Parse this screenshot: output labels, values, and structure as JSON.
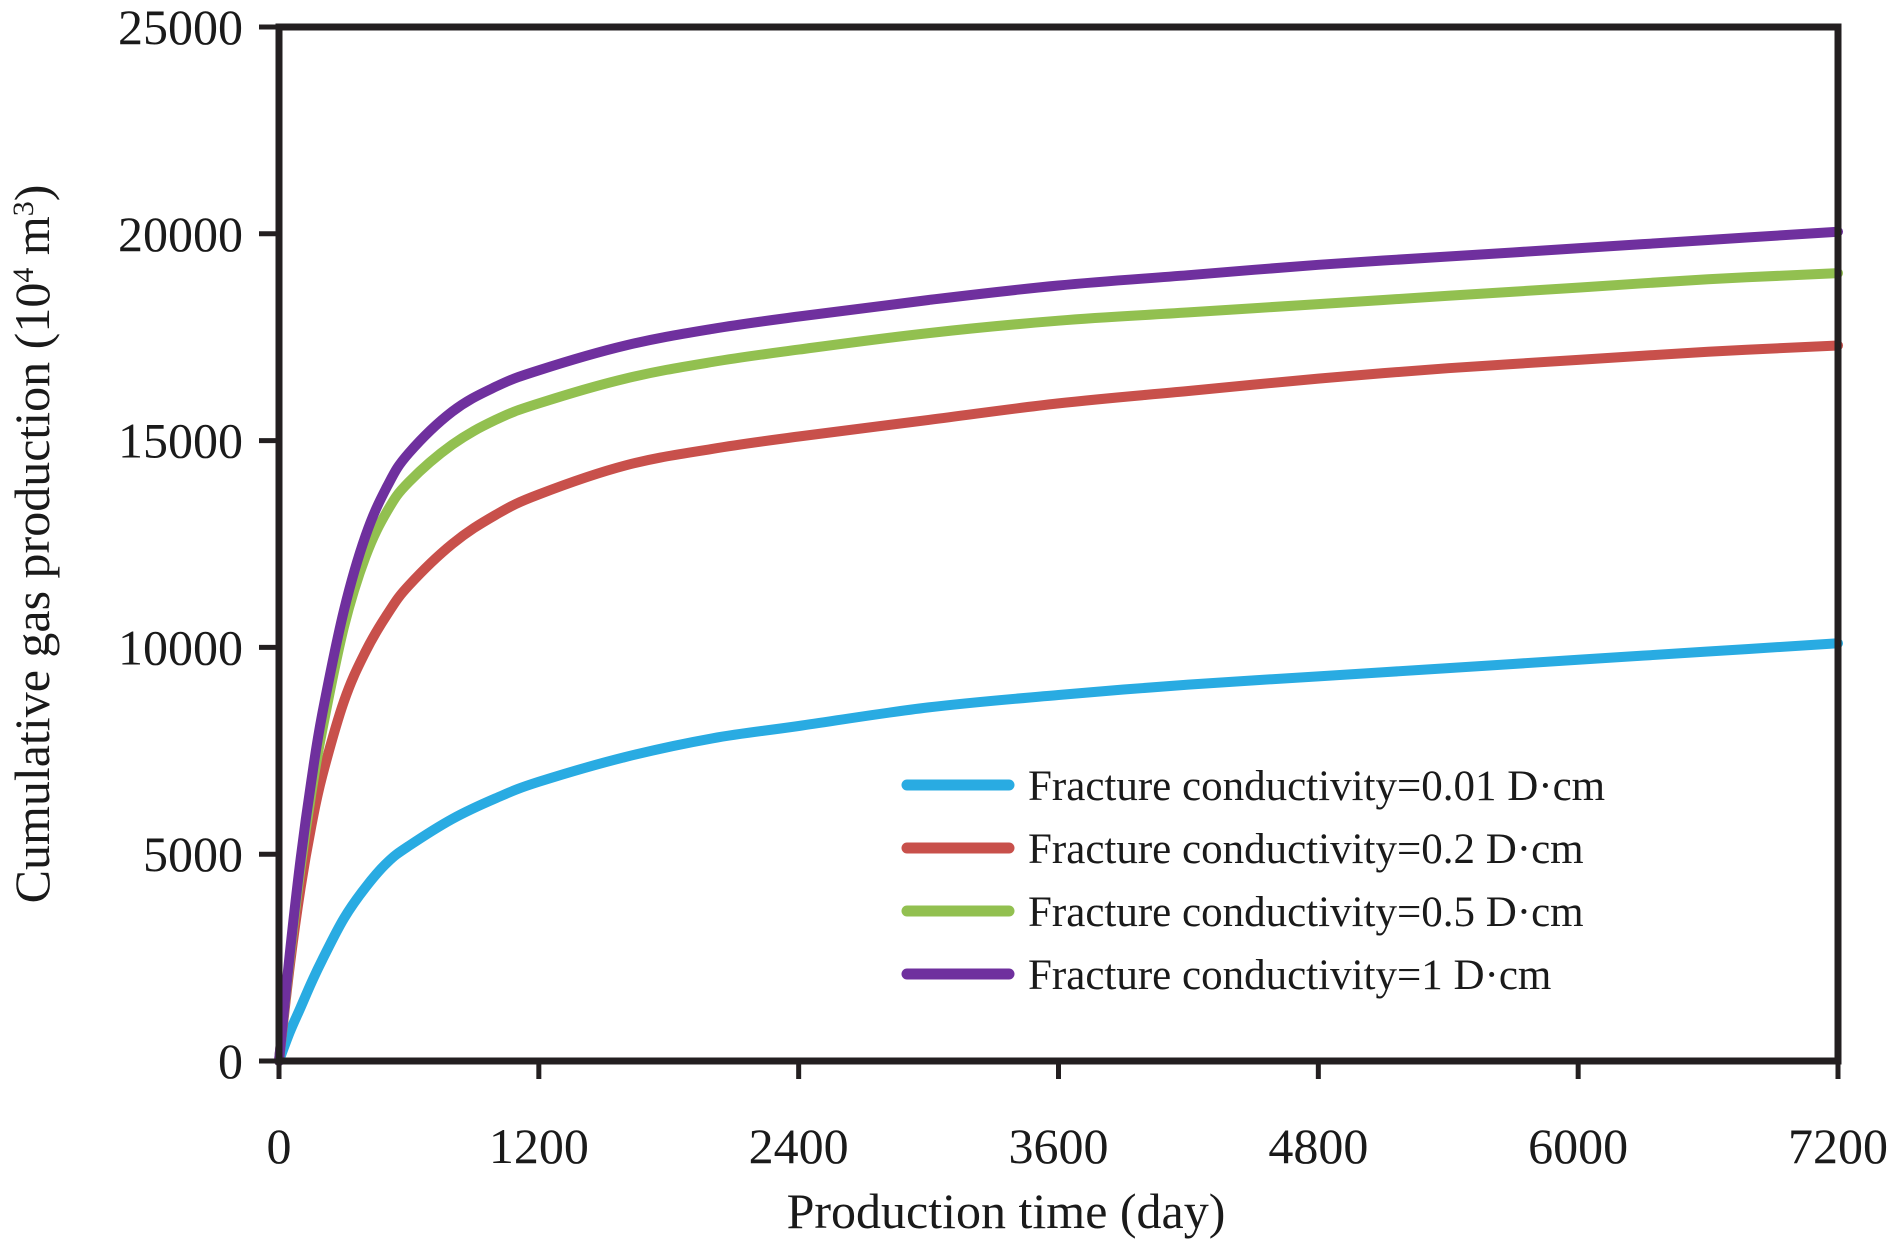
{
  "chart_data": {
    "type": "line",
    "title": "",
    "xlabel": "Production time (day)",
    "ylabel": "Cumulative gas production (10",
    "ylabel_superscript": "4",
    "ylabel_suffix": " m",
    "ylabel_unit_superscript": "3",
    "ylabel_close": ")",
    "xlim": [
      0,
      7200
    ],
    "ylim": [
      0,
      25000
    ],
    "xticks": [
      "0",
      "1200",
      "2400",
      "3600",
      "4800",
      "6000",
      "7200"
    ],
    "yticks": [
      "0",
      "5000",
      "10000",
      "15000",
      "20000",
      "25000"
    ],
    "grid": false,
    "legend_position": "bottom-right",
    "series": [
      {
        "name": "Fracture conductivity=0.01 D·cm",
        "color": "#29abe2",
        "x": [
          0,
          50,
          100,
          150,
          200,
          300,
          400,
          500,
          600,
          800,
          1000,
          1200,
          1600,
          2000,
          2400,
          3000,
          3600,
          4200,
          4800,
          5400,
          6000,
          6600,
          7200
        ],
        "y": [
          0,
          700,
          1300,
          1900,
          2450,
          3450,
          4200,
          4800,
          5200,
          5850,
          6350,
          6750,
          7350,
          7800,
          8100,
          8550,
          8850,
          9100,
          9300,
          9500,
          9700,
          9900,
          10100
        ]
      },
      {
        "name": "Fracture conductivity=0.2 D·cm",
        "color": "#c8504b",
        "x": [
          0,
          50,
          100,
          150,
          200,
          300,
          400,
          500,
          600,
          800,
          1000,
          1200,
          1600,
          2000,
          2400,
          3000,
          3600,
          4200,
          4800,
          5400,
          6000,
          6600,
          7200
        ],
        "y": [
          0,
          2300,
          4200,
          5700,
          6900,
          8700,
          9900,
          10800,
          11500,
          12500,
          13200,
          13700,
          14400,
          14800,
          15100,
          15500,
          15900,
          16200,
          16500,
          16750,
          16950,
          17150,
          17300
        ]
      },
      {
        "name": "Fracture conductivity=0.5 D·cm",
        "color": "#92c050",
        "x": [
          0,
          50,
          100,
          150,
          200,
          300,
          400,
          500,
          600,
          800,
          1000,
          1200,
          1600,
          2000,
          2400,
          3000,
          3600,
          4200,
          4800,
          5400,
          6000,
          6600,
          7200
        ],
        "y": [
          0,
          2500,
          4700,
          6500,
          8000,
          10500,
          12200,
          13300,
          14000,
          14900,
          15500,
          15900,
          16500,
          16900,
          17200,
          17600,
          17900,
          18100,
          18300,
          18500,
          18700,
          18900,
          19050
        ]
      },
      {
        "name": "Fracture conductivity=1 D·cm",
        "color": "#6f309e",
        "x": [
          0,
          50,
          100,
          150,
          200,
          300,
          400,
          500,
          600,
          800,
          1000,
          1200,
          1600,
          2000,
          2400,
          3000,
          3600,
          4200,
          4800,
          5400,
          6000,
          6600,
          7200
        ],
        "y": [
          0,
          2600,
          4900,
          6800,
          8400,
          10900,
          12700,
          13900,
          14700,
          15700,
          16300,
          16700,
          17300,
          17700,
          18000,
          18400,
          18750,
          19000,
          19250,
          19450,
          19650,
          19850,
          20050
        ]
      }
    ]
  }
}
